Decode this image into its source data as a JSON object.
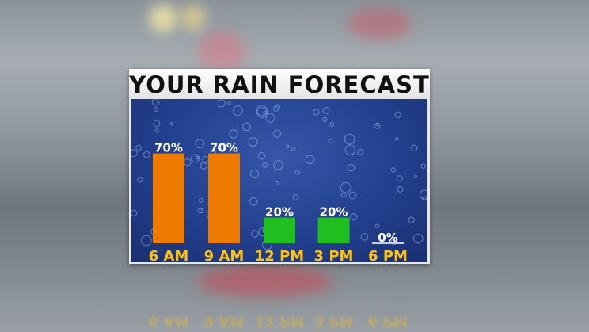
{
  "chart_data": {
    "type": "bar",
    "title": "YOUR RAIN FORECAST",
    "categories": [
      "6 AM",
      "9 AM",
      "12 PM",
      "3 PM",
      "6 PM"
    ],
    "values": [
      70,
      70,
      20,
      20,
      0
    ],
    "data_labels": [
      "70%",
      "70%",
      "20%",
      "20%",
      "0%"
    ],
    "colors": [
      "#ee7a00",
      "#ee7a00",
      "#1fbf1f",
      "#1fbf1f",
      "#ffffff"
    ],
    "label_color": "#ffc20e",
    "ylim": [
      0,
      100
    ],
    "grid": false
  }
}
